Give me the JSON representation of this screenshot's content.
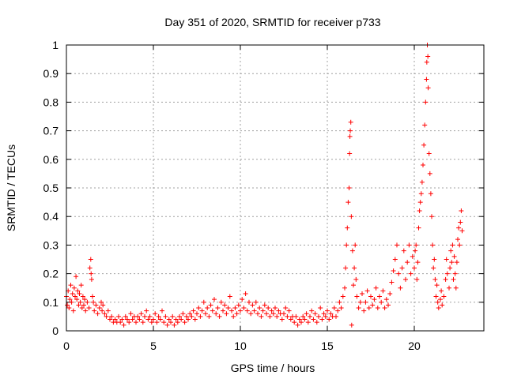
{
  "chart_data": {
    "type": "scatter",
    "title": "Day 351 of 2020, SRMTID for receiver p733",
    "xlabel": "GPS time / hours",
    "ylabel": "SRMTID / TECUs",
    "xlim": [
      0,
      24
    ],
    "ylim": [
      0,
      1
    ],
    "xticks": [
      0,
      5,
      10,
      15,
      20
    ],
    "xtick_labels": [
      "0",
      "5",
      "10",
      "15",
      "20"
    ],
    "yticks": [
      0,
      0.1,
      0.2,
      0.3,
      0.4,
      0.5,
      0.6,
      0.7,
      0.8,
      0.9,
      1
    ],
    "ytick_labels": [
      "0",
      "0.1",
      "0.2",
      "0.3",
      "0.4",
      "0.5",
      "0.6",
      "0.7",
      "0.8",
      "0.9",
      "1"
    ],
    "grid": true,
    "marker": "+",
    "series_color": "#ff0000",
    "series": [
      {
        "name": "SRMTID",
        "points": [
          [
            0.0,
            0.12
          ],
          [
            0.05,
            0.09
          ],
          [
            0.1,
            0.14
          ],
          [
            0.15,
            0.08
          ],
          [
            0.2,
            0.11
          ],
          [
            0.25,
            0.16
          ],
          [
            0.3,
            0.1
          ],
          [
            0.35,
            0.13
          ],
          [
            0.4,
            0.07
          ],
          [
            0.45,
            0.15
          ],
          [
            0.5,
            0.12
          ],
          [
            0.55,
            0.19
          ],
          [
            0.6,
            0.11
          ],
          [
            0.65,
            0.14
          ],
          [
            0.7,
            0.09
          ],
          [
            0.75,
            0.13
          ],
          [
            0.8,
            0.1
          ],
          [
            0.85,
            0.16
          ],
          [
            0.9,
            0.08
          ],
          [
            0.95,
            0.12
          ],
          [
            1.0,
            0.09
          ],
          [
            1.05,
            0.11
          ],
          [
            1.1,
            0.07
          ],
          [
            1.2,
            0.1
          ],
          [
            1.3,
            0.08
          ],
          [
            1.35,
            0.22
          ],
          [
            1.4,
            0.25
          ],
          [
            1.42,
            0.2
          ],
          [
            1.45,
            0.18
          ],
          [
            1.5,
            0.12
          ],
          [
            1.55,
            0.1
          ],
          [
            1.6,
            0.07
          ],
          [
            1.7,
            0.09
          ],
          [
            1.8,
            0.06
          ],
          [
            1.9,
            0.08
          ],
          [
            2.0,
            0.1
          ],
          [
            2.05,
            0.07
          ],
          [
            2.1,
            0.09
          ],
          [
            2.2,
            0.06
          ],
          [
            2.3,
            0.05
          ],
          [
            2.4,
            0.07
          ],
          [
            2.5,
            0.04
          ],
          [
            2.6,
            0.05
          ],
          [
            2.7,
            0.03
          ],
          [
            2.8,
            0.04
          ],
          [
            2.9,
            0.03
          ],
          [
            3.0,
            0.05
          ],
          [
            3.1,
            0.03
          ],
          [
            3.2,
            0.04
          ],
          [
            3.3,
            0.02
          ],
          [
            3.4,
            0.05
          ],
          [
            3.5,
            0.04
          ],
          [
            3.6,
            0.03
          ],
          [
            3.7,
            0.06
          ],
          [
            3.8,
            0.04
          ],
          [
            3.9,
            0.05
          ],
          [
            4.0,
            0.03
          ],
          [
            4.1,
            0.05
          ],
          [
            4.2,
            0.04
          ],
          [
            4.3,
            0.06
          ],
          [
            4.4,
            0.03
          ],
          [
            4.5,
            0.05
          ],
          [
            4.6,
            0.07
          ],
          [
            4.7,
            0.04
          ],
          [
            4.8,
            0.05
          ],
          [
            4.9,
            0.03
          ],
          [
            5.0,
            0.04
          ],
          [
            5.1,
            0.06
          ],
          [
            5.2,
            0.03
          ],
          [
            5.3,
            0.05
          ],
          [
            5.4,
            0.04
          ],
          [
            5.5,
            0.07
          ],
          [
            5.6,
            0.03
          ],
          [
            5.7,
            0.05
          ],
          [
            5.8,
            0.02
          ],
          [
            5.9,
            0.04
          ],
          [
            6.0,
            0.03
          ],
          [
            6.1,
            0.05
          ],
          [
            6.2,
            0.02
          ],
          [
            6.3,
            0.04
          ],
          [
            6.4,
            0.03
          ],
          [
            6.5,
            0.05
          ],
          [
            6.6,
            0.04
          ],
          [
            6.7,
            0.06
          ],
          [
            6.8,
            0.03
          ],
          [
            6.9,
            0.05
          ],
          [
            7.0,
            0.04
          ],
          [
            7.1,
            0.06
          ],
          [
            7.2,
            0.05
          ],
          [
            7.3,
            0.07
          ],
          [
            7.4,
            0.04
          ],
          [
            7.5,
            0.06
          ],
          [
            7.6,
            0.08
          ],
          [
            7.7,
            0.05
          ],
          [
            7.8,
            0.07
          ],
          [
            7.9,
            0.1
          ],
          [
            8.0,
            0.06
          ],
          [
            8.1,
            0.08
          ],
          [
            8.2,
            0.05
          ],
          [
            8.3,
            0.09
          ],
          [
            8.4,
            0.07
          ],
          [
            8.5,
            0.11
          ],
          [
            8.6,
            0.06
          ],
          [
            8.7,
            0.08
          ],
          [
            8.8,
            0.05
          ],
          [
            8.9,
            0.1
          ],
          [
            9.0,
            0.07
          ],
          [
            9.1,
            0.09
          ],
          [
            9.2,
            0.06
          ],
          [
            9.3,
            0.08
          ],
          [
            9.4,
            0.12
          ],
          [
            9.5,
            0.07
          ],
          [
            9.6,
            0.05
          ],
          [
            9.7,
            0.08
          ],
          [
            9.8,
            0.06
          ],
          [
            9.9,
            0.09
          ],
          [
            10.0,
            0.07
          ],
          [
            10.1,
            0.11
          ],
          [
            10.2,
            0.08
          ],
          [
            10.3,
            0.13
          ],
          [
            10.4,
            0.07
          ],
          [
            10.5,
            0.1
          ],
          [
            10.6,
            0.06
          ],
          [
            10.7,
            0.09
          ],
          [
            10.8,
            0.07
          ],
          [
            10.9,
            0.1
          ],
          [
            11.0,
            0.06
          ],
          [
            11.1,
            0.08
          ],
          [
            11.2,
            0.05
          ],
          [
            11.3,
            0.07
          ],
          [
            11.4,
            0.09
          ],
          [
            11.5,
            0.06
          ],
          [
            11.6,
            0.08
          ],
          [
            11.7,
            0.05
          ],
          [
            11.8,
            0.07
          ],
          [
            11.9,
            0.06
          ],
          [
            12.0,
            0.08
          ],
          [
            12.1,
            0.05
          ],
          [
            12.2,
            0.07
          ],
          [
            12.3,
            0.06
          ],
          [
            12.4,
            0.04
          ],
          [
            12.5,
            0.06
          ],
          [
            12.6,
            0.08
          ],
          [
            12.7,
            0.05
          ],
          [
            12.8,
            0.07
          ],
          [
            12.9,
            0.04
          ],
          [
            13.0,
            0.05
          ],
          [
            13.1,
            0.03
          ],
          [
            13.2,
            0.05
          ],
          [
            13.3,
            0.02
          ],
          [
            13.4,
            0.04
          ],
          [
            13.5,
            0.03
          ],
          [
            13.6,
            0.05
          ],
          [
            13.7,
            0.04
          ],
          [
            13.8,
            0.06
          ],
          [
            13.9,
            0.03
          ],
          [
            14.0,
            0.05
          ],
          [
            14.1,
            0.07
          ],
          [
            14.2,
            0.04
          ],
          [
            14.3,
            0.06
          ],
          [
            14.4,
            0.03
          ],
          [
            14.5,
            0.05
          ],
          [
            14.6,
            0.08
          ],
          [
            14.7,
            0.04
          ],
          [
            14.8,
            0.06
          ],
          [
            14.9,
            0.05
          ],
          [
            15.0,
            0.07
          ],
          [
            15.1,
            0.04
          ],
          [
            15.2,
            0.06
          ],
          [
            15.3,
            0.05
          ],
          [
            15.4,
            0.08
          ],
          [
            15.5,
            0.05
          ],
          [
            15.6,
            0.07
          ],
          [
            15.7,
            0.1
          ],
          [
            15.8,
            0.08
          ],
          [
            15.9,
            0.12
          ],
          [
            16.0,
            0.15
          ],
          [
            16.05,
            0.22
          ],
          [
            16.1,
            0.3
          ],
          [
            16.15,
            0.36
          ],
          [
            16.2,
            0.45
          ],
          [
            16.25,
            0.5
          ],
          [
            16.28,
            0.62
          ],
          [
            16.3,
            0.68
          ],
          [
            16.32,
            0.7
          ],
          [
            16.35,
            0.73
          ],
          [
            16.38,
            0.4
          ],
          [
            16.4,
            0.02
          ],
          [
            16.45,
            0.28
          ],
          [
            16.5,
            0.16
          ],
          [
            16.55,
            0.22
          ],
          [
            16.6,
            0.3
          ],
          [
            16.65,
            0.18
          ],
          [
            16.7,
            0.12
          ],
          [
            16.8,
            0.08
          ],
          [
            16.9,
            0.1
          ],
          [
            17.0,
            0.13
          ],
          [
            17.1,
            0.07
          ],
          [
            17.2,
            0.1
          ],
          [
            17.3,
            0.14
          ],
          [
            17.4,
            0.08
          ],
          [
            17.5,
            0.12
          ],
          [
            17.6,
            0.09
          ],
          [
            17.7,
            0.11
          ],
          [
            17.8,
            0.15
          ],
          [
            17.9,
            0.08
          ],
          [
            18.0,
            0.12
          ],
          [
            18.1,
            0.1
          ],
          [
            18.2,
            0.14
          ],
          [
            18.3,
            0.08
          ],
          [
            18.4,
            0.11
          ],
          [
            18.5,
            0.09
          ],
          [
            18.6,
            0.13
          ],
          [
            18.7,
            0.17
          ],
          [
            18.8,
            0.21
          ],
          [
            18.9,
            0.25
          ],
          [
            19.0,
            0.3
          ],
          [
            19.1,
            0.2
          ],
          [
            19.2,
            0.15
          ],
          [
            19.3,
            0.22
          ],
          [
            19.4,
            0.28
          ],
          [
            19.5,
            0.18
          ],
          [
            19.6,
            0.24
          ],
          [
            19.7,
            0.3
          ],
          [
            19.8,
            0.2
          ],
          [
            19.9,
            0.26
          ],
          [
            20.0,
            0.22
          ],
          [
            20.05,
            0.28
          ],
          [
            20.1,
            0.3
          ],
          [
            20.15,
            0.18
          ],
          [
            20.2,
            0.24
          ],
          [
            20.25,
            0.36
          ],
          [
            20.3,
            0.42
          ],
          [
            20.35,
            0.45
          ],
          [
            20.4,
            0.48
          ],
          [
            20.45,
            0.52
          ],
          [
            20.5,
            0.58
          ],
          [
            20.55,
            0.65
          ],
          [
            20.6,
            0.72
          ],
          [
            20.65,
            0.8
          ],
          [
            20.7,
            0.88
          ],
          [
            20.72,
            0.94
          ],
          [
            20.75,
            1.0
          ],
          [
            20.78,
            0.96
          ],
          [
            20.8,
            0.85
          ],
          [
            20.85,
            0.62
          ],
          [
            20.9,
            0.55
          ],
          [
            20.95,
            0.48
          ],
          [
            21.0,
            0.4
          ],
          [
            21.05,
            0.3
          ],
          [
            21.1,
            0.22
          ],
          [
            21.15,
            0.25
          ],
          [
            21.2,
            0.18
          ],
          [
            21.25,
            0.12
          ],
          [
            21.3,
            0.16
          ],
          [
            21.35,
            0.1
          ],
          [
            21.4,
            0.08
          ],
          [
            21.5,
            0.11
          ],
          [
            21.55,
            0.14
          ],
          [
            21.6,
            0.09
          ],
          [
            21.7,
            0.12
          ],
          [
            21.8,
            0.18
          ],
          [
            21.85,
            0.25
          ],
          [
            21.9,
            0.2
          ],
          [
            22.0,
            0.15
          ],
          [
            22.05,
            0.22
          ],
          [
            22.1,
            0.28
          ],
          [
            22.15,
            0.24
          ],
          [
            22.2,
            0.3
          ],
          [
            22.25,
            0.18
          ],
          [
            22.3,
            0.26
          ],
          [
            22.35,
            0.2
          ],
          [
            22.4,
            0.15
          ],
          [
            22.45,
            0.24
          ],
          [
            22.5,
            0.32
          ],
          [
            22.55,
            0.36
          ],
          [
            22.6,
            0.3
          ],
          [
            22.65,
            0.38
          ],
          [
            22.7,
            0.42
          ],
          [
            22.75,
            0.35
          ]
        ]
      }
    ]
  }
}
